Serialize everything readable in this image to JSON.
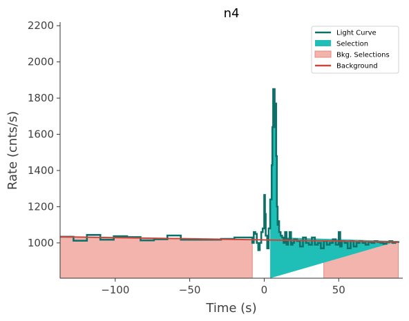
{
  "chart_data": {
    "type": "line",
    "title": "n4",
    "xlabel": "Time (s)",
    "ylabel": "Rate (cnts/s)",
    "xlim": [
      -137,
      93
    ],
    "ylim": [
      805,
      2220
    ],
    "x_ticks": [
      -100,
      -50,
      0,
      50
    ],
    "y_ticks": [
      1000,
      1200,
      1400,
      1600,
      1800,
      2000,
      2200
    ],
    "x_tick_labels": [
      "−100",
      "−50",
      "0",
      "50"
    ],
    "y_tick_labels": [
      "1000",
      "1200",
      "1400",
      "1600",
      "1800",
      "2000",
      "2200"
    ],
    "grid": false,
    "legend_position": "top-right",
    "legend": [
      {
        "label": "Light Curve",
        "kind": "line",
        "color": "#0e7169"
      },
      {
        "label": "Selection",
        "kind": "patch",
        "color": "#1fbfb8"
      },
      {
        "label": "Bkg. Selections",
        "kind": "patch",
        "color": "#f4b4ae"
      },
      {
        "label": "Background",
        "kind": "line",
        "color": "#c8463a"
      }
    ],
    "colors": {
      "light_curve": "#0e7169",
      "selection": "#1fbfb8",
      "bkg_selection_fill": "#f4b4ae",
      "bkg_selection_edge": "#e7877d",
      "background": "#c8463a",
      "axis": "#333333"
    },
    "background_fit": {
      "x": [
        -137,
        90
      ],
      "y": [
        1034,
        1005
      ]
    },
    "bkg_selections": [
      [
        -137,
        -8
      ],
      [
        40,
        90
      ]
    ],
    "selection": [
      4,
      13
    ],
    "series": [
      {
        "name": "Light Curve",
        "edges": [
          -137,
          -128,
          -119,
          -110,
          -101,
          -92,
          -83,
          -74,
          -65,
          -56,
          -47,
          -38,
          -29,
          -20,
          -11,
          -8,
          -7,
          -6,
          -5,
          -4,
          -3,
          -2,
          -1,
          0,
          0.5,
          1,
          2,
          3,
          4,
          5,
          5.5,
          6,
          6.5,
          7,
          7.5,
          8,
          8.5,
          9,
          9.5,
          10,
          11,
          12,
          13,
          14,
          15,
          16,
          17,
          18,
          19,
          20,
          22,
          24,
          26,
          28,
          30,
          32,
          34,
          36,
          38,
          40,
          42,
          44,
          46,
          48,
          50,
          51,
          52,
          54,
          56,
          58,
          60,
          62,
          64,
          66,
          68,
          70,
          72,
          74,
          76,
          78,
          80,
          82,
          84,
          86,
          88,
          90
        ],
        "values": [
          1034,
          1012,
          1044,
          1018,
          1037,
          1032,
          1014,
          1020,
          1041,
          1018,
          1018,
          1018,
          1022,
          1030,
          1030,
          1000,
          1060,
          1050,
          1000,
          960,
          1000,
          1060,
          1080,
          1265,
          1160,
          1040,
          970,
          1080,
          1240,
          1430,
          1640,
          1850,
          1850,
          1640,
          1770,
          1480,
          1200,
          1100,
          1120,
          1060,
          1040,
          1030,
          1000,
          1060,
          990,
          1020,
          1060,
          990,
          1000,
          1020,
          1010,
          980,
          1030,
          1000,
          990,
          1030,
          990,
          1000,
          970,
          1010,
          990,
          1000,
          1020,
          990,
          1060,
          980,
          1010,
          1000,
          970,
          1010,
          980,
          1000,
          1010,
          1000,
          990,
          1005,
          1000,
          1010,
          1005,
          1000,
          995,
          1005,
          1010,
          1000,
          1005,
          1010
        ]
      }
    ]
  }
}
